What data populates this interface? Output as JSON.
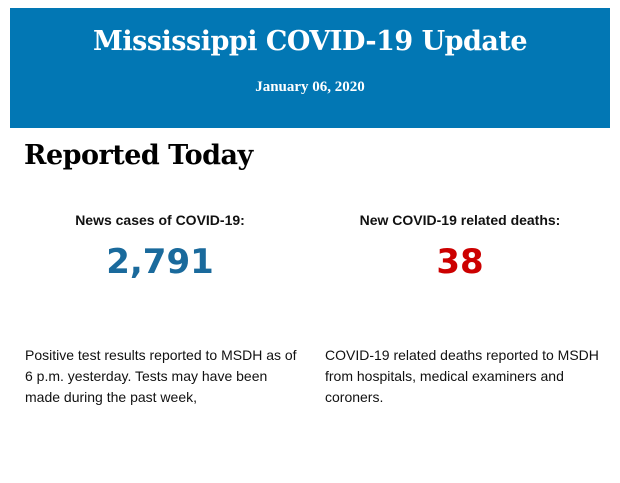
{
  "header": {
    "title": "Mississippi COVID-19 Update",
    "date": "January 06, 2020",
    "background": "#0277b4"
  },
  "section_title": "Reported Today",
  "cases": {
    "label": "News cases of COVID-19:",
    "value": "2,791",
    "color": "#1a6a9c",
    "description": "Positive test results reported to MSDH as of 6 p.m. yesterday. Tests may have been made during the past week,"
  },
  "deaths": {
    "label": "New COVID-19 related deaths:",
    "value": "38",
    "color": "#cc0000",
    "description": "COVID-19 related deaths reported to MSDH from hospitals, medical examiners and coroners."
  }
}
